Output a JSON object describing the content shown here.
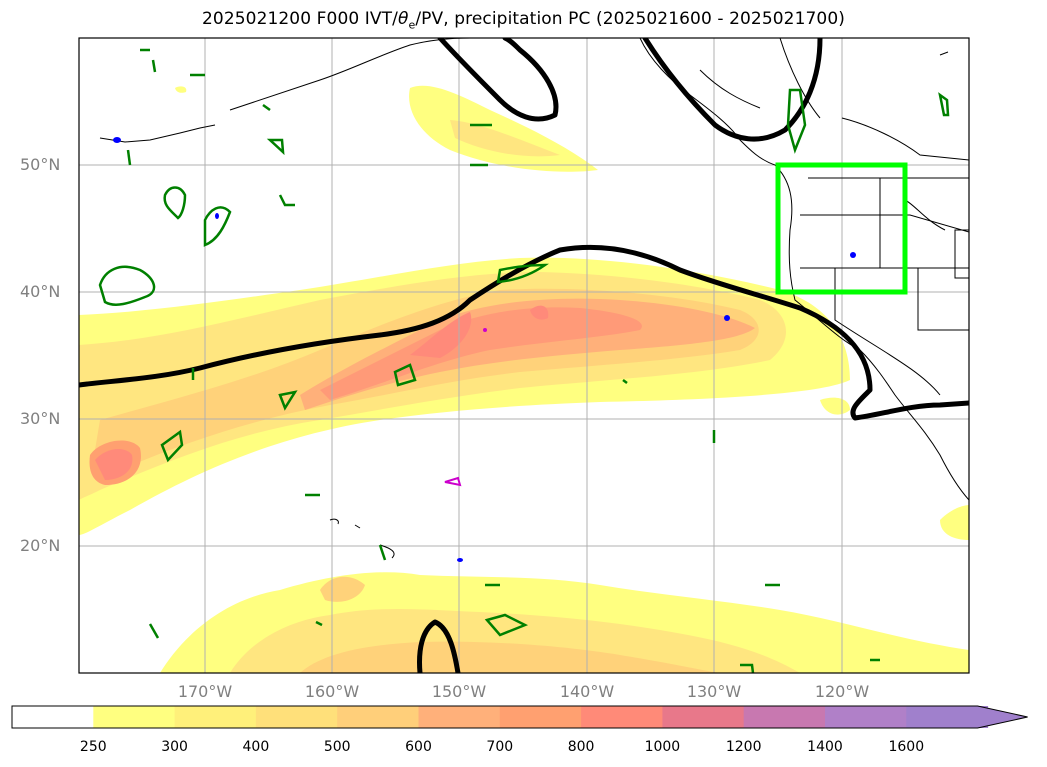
{
  "title_prefix": "2025021200 F000 IVT/",
  "title_theta": "θ",
  "title_sub": "e",
  "title_suffix": "/PV, precipitation PC (2025021600 - 2025021700)",
  "map": {
    "lat_labels": [
      "50°N",
      "40°N",
      "30°N",
      "20°N"
    ],
    "lon_labels": [
      "170°W",
      "160°W",
      "150°W",
      "140°W",
      "130°W",
      "120°W"
    ],
    "highlight_box_color": "#00ff00",
    "pv_contour_color": "#000000",
    "theta_contour_color": "#008000",
    "precip_color_blue": "#0000ff",
    "precip_color_magenta": "#cc00cc"
  },
  "colorbar": {
    "labels": [
      "250",
      "300",
      "400",
      "500",
      "600",
      "700",
      "800",
      "1000",
      "1200",
      "1400",
      "1600"
    ],
    "colors": [
      "#ffffff",
      "#ffff80",
      "#fff07a",
      "#ffe07a",
      "#ffcf7a",
      "#ffb07a",
      "#ffa070",
      "#ff8a78",
      "#e8788a",
      "#c878b0",
      "#b080c8",
      "#a080cc"
    ]
  }
}
